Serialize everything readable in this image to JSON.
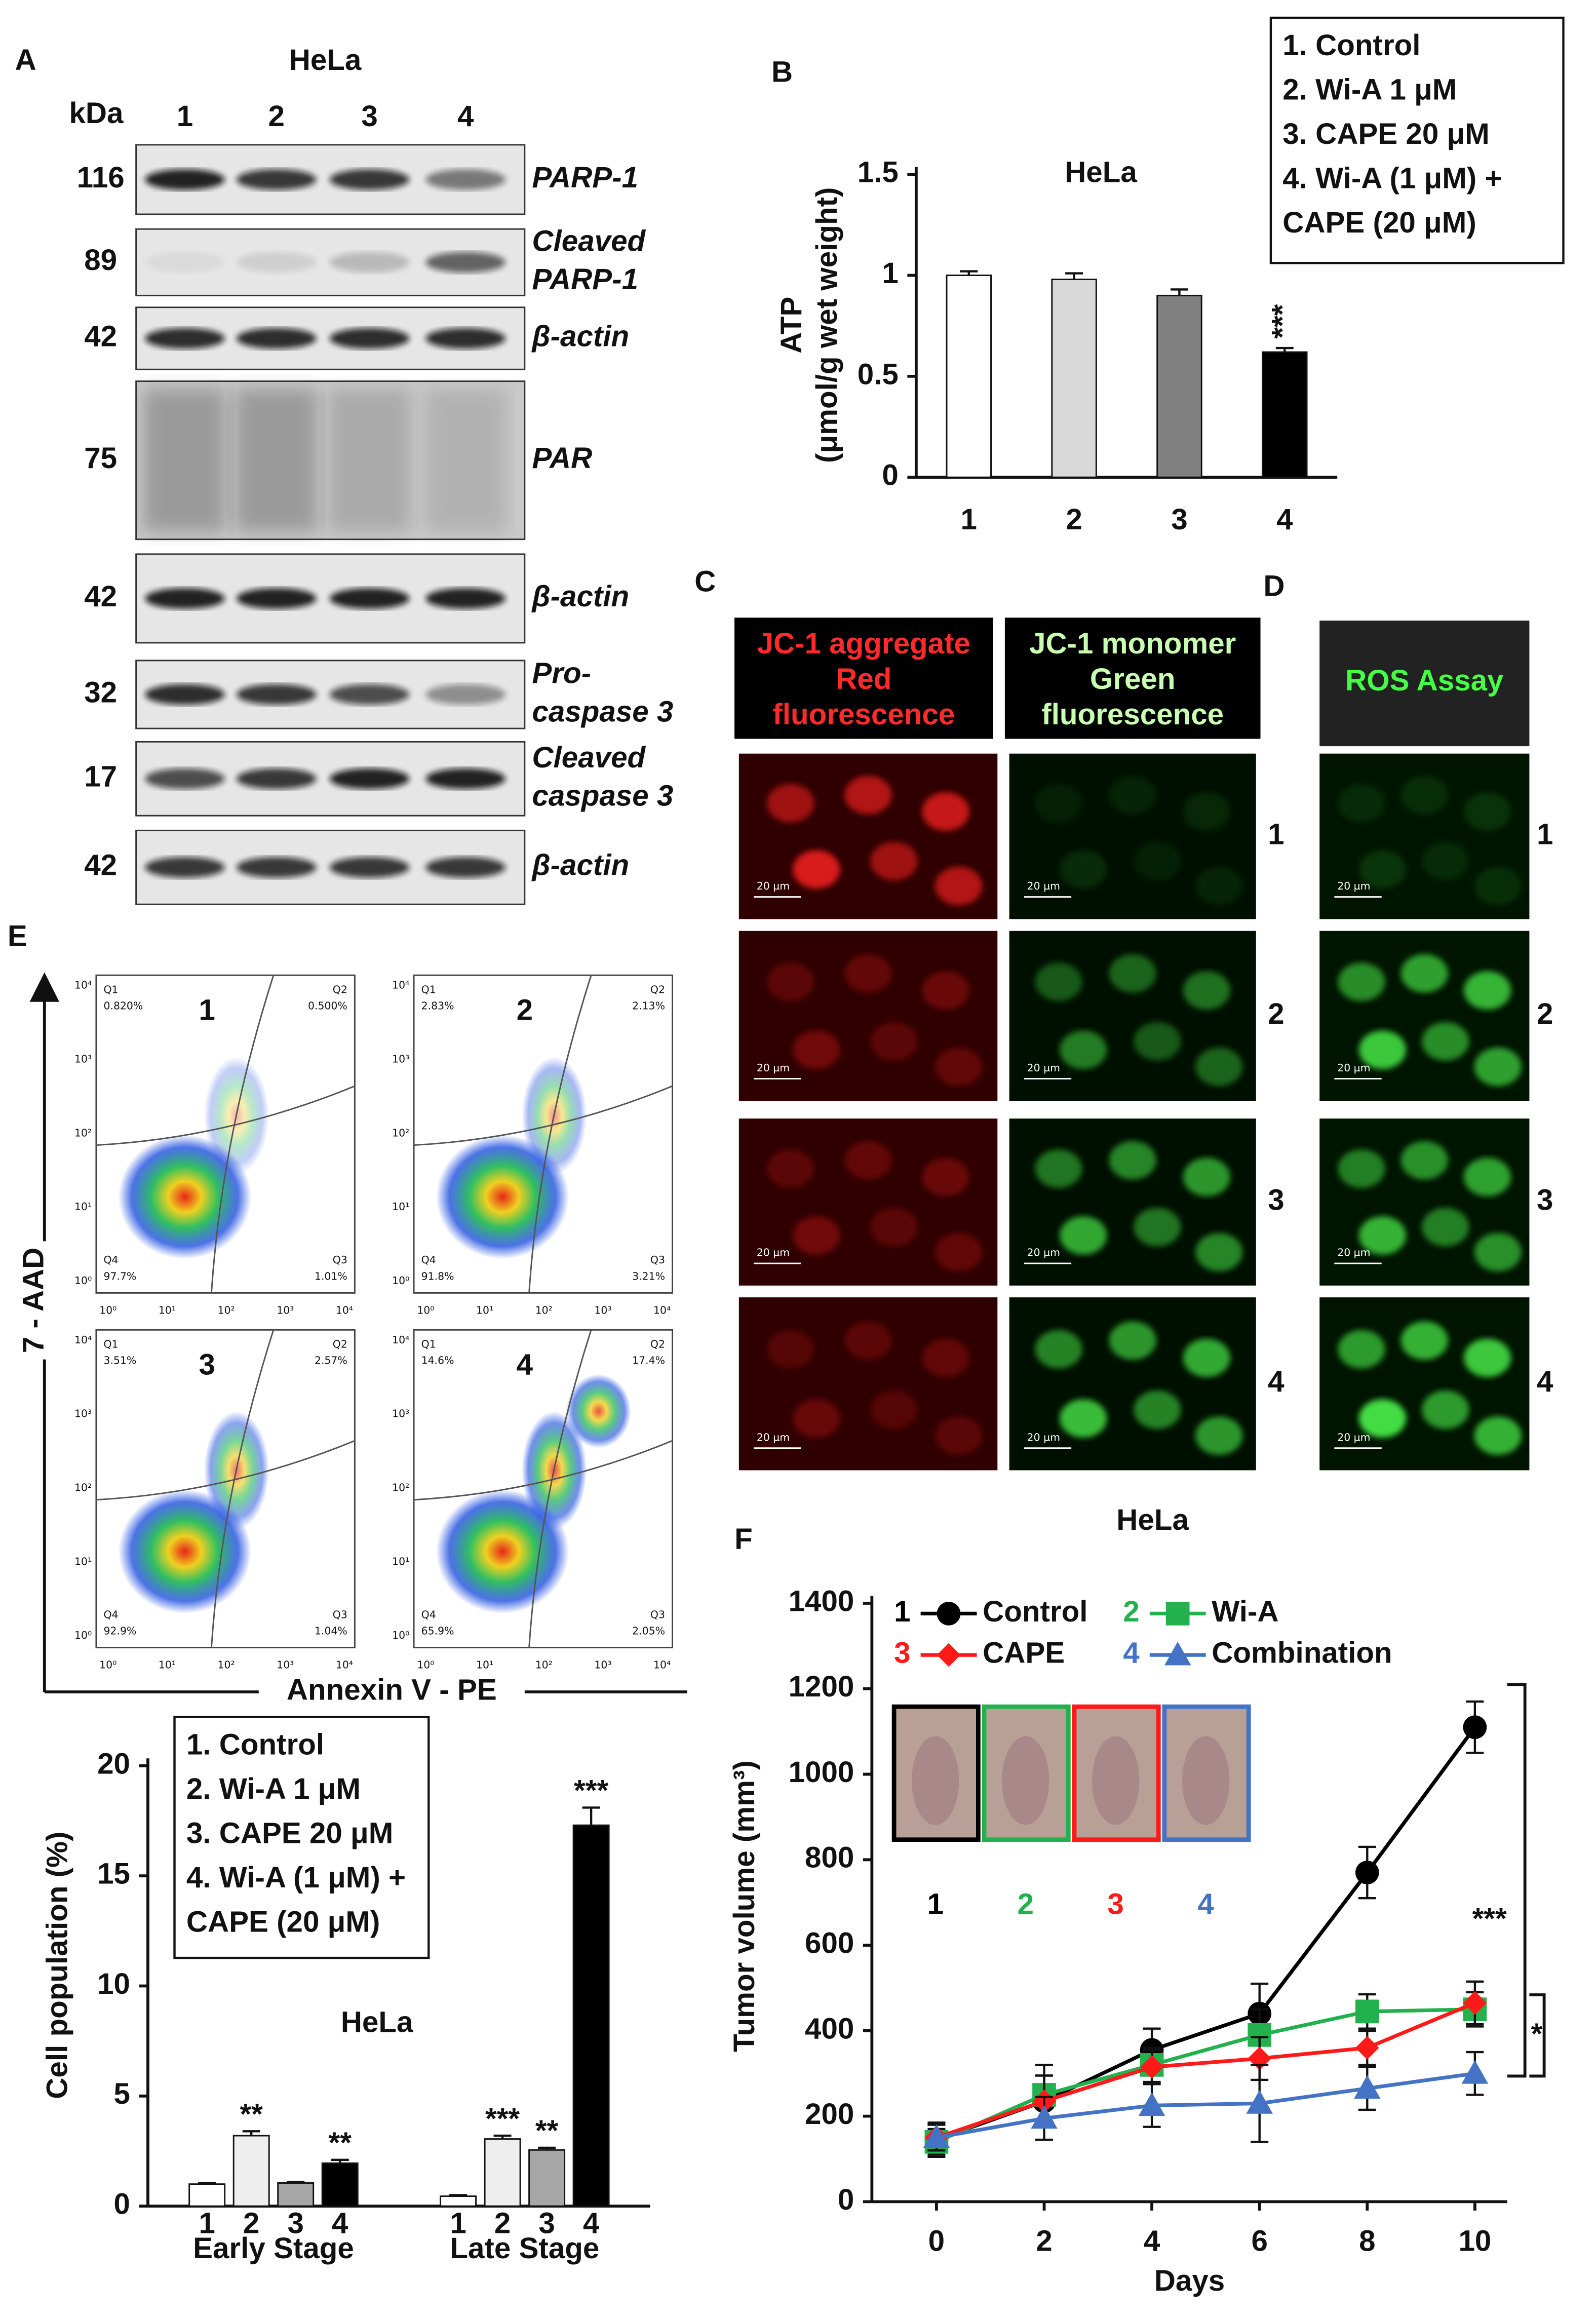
{
  "panels": {
    "labels": [
      "A",
      "B",
      "C",
      "D",
      "E",
      "F"
    ]
  },
  "blots": {
    "title": "HeLa",
    "unit": "kDa",
    "lanes": [
      "1",
      "2",
      "3",
      "4"
    ],
    "rows": [
      {
        "kda": "116",
        "label": [
          "PARP-1"
        ]
      },
      {
        "kda": "89",
        "label": [
          "Cleaved",
          "PARP-1"
        ]
      },
      {
        "kda": "42",
        "label": [
          "β-actin"
        ]
      },
      {
        "kda": "75",
        "label": [
          "PAR"
        ]
      },
      {
        "kda": "42",
        "label": [
          "β-actin"
        ]
      },
      {
        "kda": "32",
        "label": [
          "Pro-",
          "caspase 3"
        ]
      },
      {
        "kda": "17",
        "label": [
          "Cleaved",
          "caspase 3"
        ]
      },
      {
        "kda": "42",
        "label": [
          "β-actin"
        ]
      }
    ]
  },
  "microscopy": {
    "jc1_headers": [
      [
        "JC-1 aggregate",
        "Red",
        "fluorescence"
      ],
      [
        "JC-1 monomer",
        "Green",
        "fluorescence"
      ]
    ],
    "ros_header": "ROS Assay",
    "rows": [
      "1",
      "2",
      "3",
      "4"
    ],
    "scale_bar": "20 µm"
  },
  "flow": {
    "y_label": "7 - AAD",
    "x_label": "Annexin V - PE",
    "ticks": [
      "10⁰",
      "10¹",
      "10²",
      "10³",
      "10⁴"
    ],
    "plots": [
      {
        "label": "1",
        "quadrants": [
          {
            "name": "Q1",
            "value": "0.820%"
          },
          {
            "name": "Q2",
            "value": "0.500%"
          },
          {
            "name": "Q4",
            "value": "97.7%"
          },
          {
            "name": "Q3",
            "value": "1.01%"
          }
        ]
      },
      {
        "label": "2",
        "quadrants": [
          {
            "name": "Q1",
            "value": "2.83%"
          },
          {
            "name": "Q2",
            "value": "2.13%"
          },
          {
            "name": "Q4",
            "value": "91.8%"
          },
          {
            "name": "Q3",
            "value": "3.21%"
          }
        ]
      },
      {
        "label": "3",
        "quadrants": [
          {
            "name": "Q1",
            "value": "3.51%"
          },
          {
            "name": "Q2",
            "value": "2.57%"
          },
          {
            "name": "Q4",
            "value": "92.9%"
          },
          {
            "name": "Q3",
            "value": "1.04%"
          }
        ]
      },
      {
        "label": "4",
        "quadrants": [
          {
            "name": "Q1",
            "value": "14.6%"
          },
          {
            "name": "Q2",
            "value": "17.4%"
          },
          {
            "name": "Q4",
            "value": "65.9%"
          },
          {
            "name": "Q3",
            "value": "2.05%"
          }
        ]
      }
    ]
  },
  "chart_data": [
    {
      "type": "bar",
      "title": "HeLa",
      "ylabel": [
        "ATP",
        "(μmol/g wet weight)"
      ],
      "categories": [
        "1",
        "2",
        "3",
        "4"
      ],
      "values": [
        1.0,
        0.98,
        0.9,
        0.62
      ],
      "errors": [
        0.02,
        0.03,
        0.03,
        0.02
      ],
      "colors": [
        "#ffffff",
        "#d9d9d9",
        "#808080",
        "#000000"
      ],
      "annotations": [
        null,
        null,
        null,
        "***"
      ],
      "ylim": [
        0,
        1.5
      ],
      "yticks": [
        0,
        0.5,
        1,
        1.5
      ],
      "legend_items": [
        [
          "1. Control"
        ],
        [
          "2. Wi-A 1 μM"
        ],
        [
          "3. CAPE 20 μM"
        ],
        [
          "4. Wi-A (1 μM) +",
          "CAPE (20 μM)"
        ]
      ]
    },
    {
      "type": "grouped_bar",
      "title": "HeLa",
      "ylabel": "Cell population (%)",
      "categories": [
        "Early Stage",
        "Late Stage"
      ],
      "series": [
        {
          "name": "1",
          "color": "#ffffff",
          "values": [
            1.0,
            0.45
          ],
          "errors": [
            0.05,
            0.05
          ],
          "annotations": [
            null,
            null
          ]
        },
        {
          "name": "2",
          "color": "#eeeeee",
          "values": [
            3.2,
            3.05
          ],
          "errors": [
            0.2,
            0.15
          ],
          "annotations": [
            "**",
            "***"
          ]
        },
        {
          "name": "3",
          "color": "#a6a6a6",
          "values": [
            1.05,
            2.55
          ],
          "errors": [
            0.05,
            0.1
          ],
          "annotations": [
            null,
            "**"
          ]
        },
        {
          "name": "4",
          "color": "#000000",
          "values": [
            1.95,
            17.3
          ],
          "errors": [
            0.15,
            0.8
          ],
          "annotations": [
            "**",
            "***"
          ]
        }
      ],
      "ylim": [
        0,
        20
      ],
      "yticks": [
        0,
        5,
        10,
        15,
        20
      ],
      "legend_items": [
        [
          "1. Control"
        ],
        [
          "2. Wi-A 1 μM"
        ],
        [
          "3. CAPE 20 μM"
        ],
        [
          "4. Wi-A (1 μM) +",
          "CAPE (20 μM)"
        ]
      ]
    },
    {
      "type": "line",
      "title": "HeLa",
      "xlabel": "Days",
      "ylabel": "Tumor volume (mm³)",
      "x": [
        0,
        2,
        4,
        6,
        8,
        10
      ],
      "series": [
        {
          "name": "Control",
          "label": "1",
          "color": "#000000",
          "marker": "circle",
          "values": [
            145,
            235,
            355,
            440,
            770,
            1110
          ],
          "errors": [
            40,
            60,
            50,
            70,
            60,
            60
          ]
        },
        {
          "name": "Wi-A",
          "label": "2",
          "color": "#22b14c",
          "marker": "square",
          "values": [
            140,
            250,
            320,
            390,
            445,
            450
          ],
          "errors": [
            30,
            70,
            40,
            60,
            40,
            40
          ]
        },
        {
          "name": "CAPE",
          "label": "3",
          "color": "#ff1a1a",
          "marker": "diamond",
          "values": [
            150,
            235,
            315,
            335,
            360,
            465
          ],
          "errors": [
            30,
            60,
            40,
            50,
            40,
            50
          ]
        },
        {
          "name": "Combination",
          "label": "4",
          "color": "#4472c4",
          "marker": "triangle",
          "values": [
            150,
            195,
            225,
            230,
            265,
            300
          ],
          "errors": [
            30,
            50,
            50,
            90,
            50,
            50
          ]
        }
      ],
      "xlim": [
        -1.2,
        10.6
      ],
      "xticks": [
        0,
        2,
        4,
        6,
        8,
        10
      ],
      "ylim": [
        0,
        1400
      ],
      "yticks": [
        0,
        200,
        400,
        600,
        800,
        1000,
        1200,
        1400
      ],
      "annotations": [
        "***",
        "*"
      ]
    }
  ]
}
